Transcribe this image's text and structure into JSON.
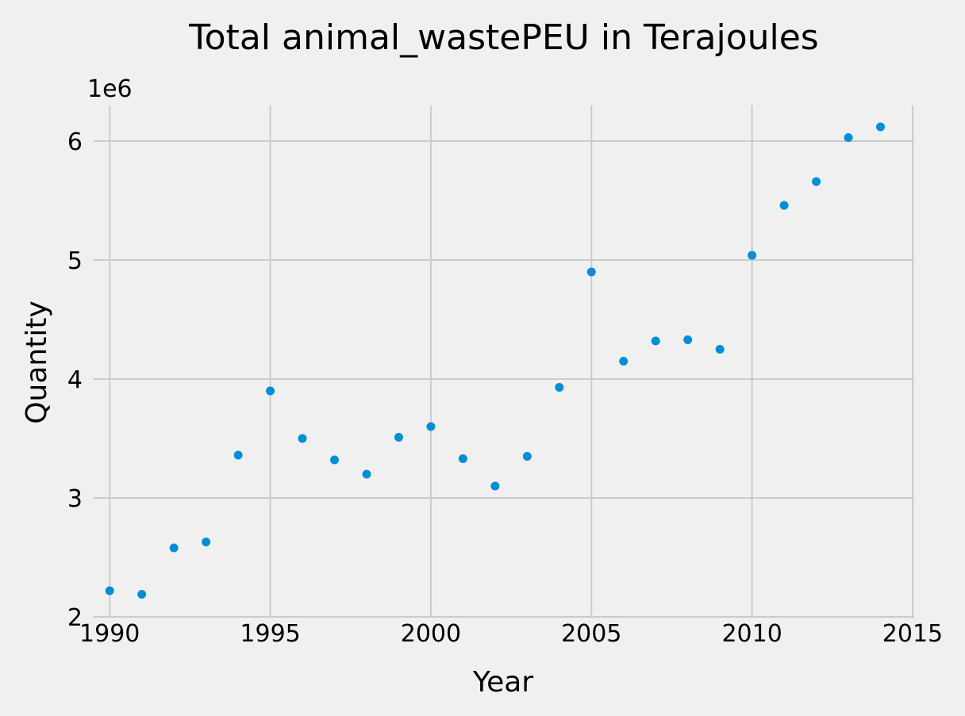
{
  "chart_data": {
    "type": "scatter",
    "title": "Total animal_wastePEU in Terajoules",
    "xlabel": "Year",
    "ylabel": "Quantity",
    "y_offset_label": "1e6",
    "xlim": [
      1989.5,
      2015.05
    ],
    "ylim": [
      2.0,
      6.3
    ],
    "x_ticks": [
      1990,
      1995,
      2000,
      2005,
      2010,
      2015
    ],
    "x_tick_labels": [
      "1990",
      "1995",
      "2000",
      "2005",
      "2010",
      "2015"
    ],
    "y_ticks": [
      2,
      3,
      4,
      5,
      6
    ],
    "y_tick_labels": [
      "2",
      "3",
      "4",
      "5",
      "6"
    ],
    "grid": true,
    "series": [
      {
        "x": [
          1990,
          1991,
          1992,
          1993,
          1994,
          1995,
          1996,
          1997,
          1998,
          1999,
          2000,
          2001,
          2002,
          2003,
          2004,
          2005,
          2006,
          2007,
          2008,
          2009,
          2010,
          2011,
          2012,
          2013,
          2014
        ],
        "y": [
          2.22,
          2.19,
          2.58,
          2.63,
          3.36,
          3.9,
          3.5,
          3.32,
          3.2,
          3.51,
          3.6,
          3.33,
          3.1,
          3.35,
          3.93,
          4.9,
          4.15,
          4.32,
          4.33,
          4.25,
          5.04,
          5.46,
          5.66,
          6.03,
          6.12
        ]
      }
    ]
  },
  "colors": {
    "background": "#f0f0f0",
    "grid": "#cbcbcb",
    "marker": "#008fd5",
    "text": "#000000"
  }
}
